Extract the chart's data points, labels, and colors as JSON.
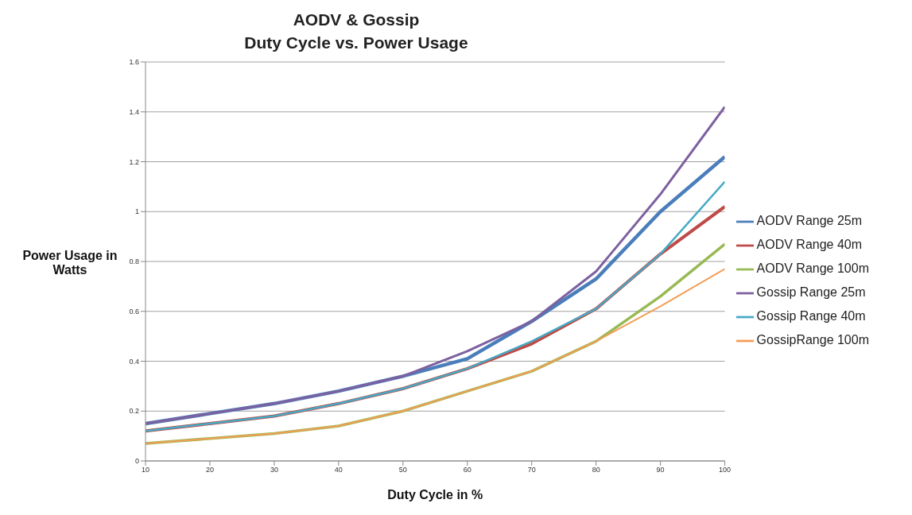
{
  "chart_data": {
    "type": "line",
    "title": "AODV & Gossip\nDuty Cycle vs. Power Usage",
    "xlabel": "Duty Cycle in %",
    "ylabel": "Power Usage in Watts",
    "x": [
      10,
      20,
      30,
      40,
      50,
      60,
      70,
      80,
      90,
      100
    ],
    "xlim": [
      10,
      100
    ],
    "xticks": [
      10,
      20,
      30,
      40,
      50,
      60,
      70,
      80,
      90,
      100
    ],
    "ylim": [
      0,
      1.6
    ],
    "yticks": [
      0,
      0.2,
      0.4,
      0.6,
      0.8,
      1,
      1.2,
      1.4,
      1.6
    ],
    "grid": "y",
    "legend": "right",
    "marker": "none",
    "line_style": "solid",
    "series": [
      {
        "name": "AODV Range 25m",
        "color": "#4a7ebb",
        "values": [
          0.15,
          0.19,
          0.23,
          0.28,
          0.34,
          0.41,
          0.56,
          0.73,
          1.0,
          1.22
        ]
      },
      {
        "name": "AODV Range 40m",
        "color": "#be4b48",
        "values": [
          0.12,
          0.15,
          0.18,
          0.23,
          0.29,
          0.37,
          0.47,
          0.61,
          0.83,
          1.02
        ]
      },
      {
        "name": "AODV Range 100m",
        "color": "#98b954",
        "values": [
          0.07,
          0.09,
          0.11,
          0.14,
          0.2,
          0.28,
          0.36,
          0.48,
          0.66,
          0.87
        ]
      },
      {
        "name": "Gossip Range 25m",
        "color": "#7d60a0",
        "values": [
          0.15,
          0.19,
          0.23,
          0.28,
          0.34,
          0.44,
          0.56,
          0.76,
          1.07,
          1.42
        ]
      },
      {
        "name": "Gossip Range 40m",
        "color": "#46aac5",
        "values": [
          0.12,
          0.15,
          0.18,
          0.23,
          0.29,
          0.37,
          0.48,
          0.61,
          0.83,
          1.12
        ]
      },
      {
        "name": "GossipRange 100m",
        "color": "#f59d56",
        "values": [
          0.07,
          0.09,
          0.11,
          0.14,
          0.2,
          0.28,
          0.36,
          0.48,
          0.62,
          0.77
        ]
      }
    ]
  }
}
